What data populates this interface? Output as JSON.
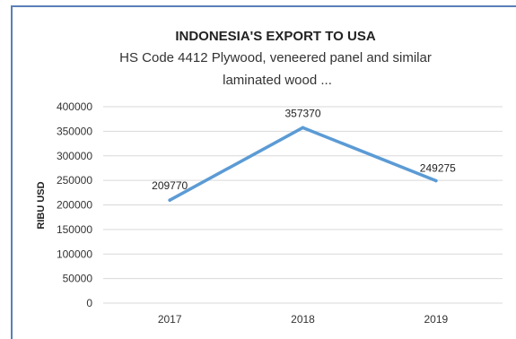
{
  "chart_data": {
    "type": "line",
    "title": "INDONESIA'S EXPORT TO USA",
    "subtitle_lines": [
      "HS Code 4412 Plywood, veneered panel and similar",
      "laminated wood ..."
    ],
    "xlabel": "",
    "ylabel": "RIBU USD",
    "categories": [
      "2017",
      "2018",
      "2019"
    ],
    "series": [
      {
        "values": [
          209770,
          357370,
          249275
        ]
      }
    ],
    "ylim": [
      0,
      400000
    ],
    "yticks": [
      0,
      50000,
      100000,
      150000,
      200000,
      250000,
      300000,
      350000,
      400000
    ],
    "grid": true,
    "line_color": "#5b9bd5",
    "grid_color": "#d9d9d9"
  }
}
